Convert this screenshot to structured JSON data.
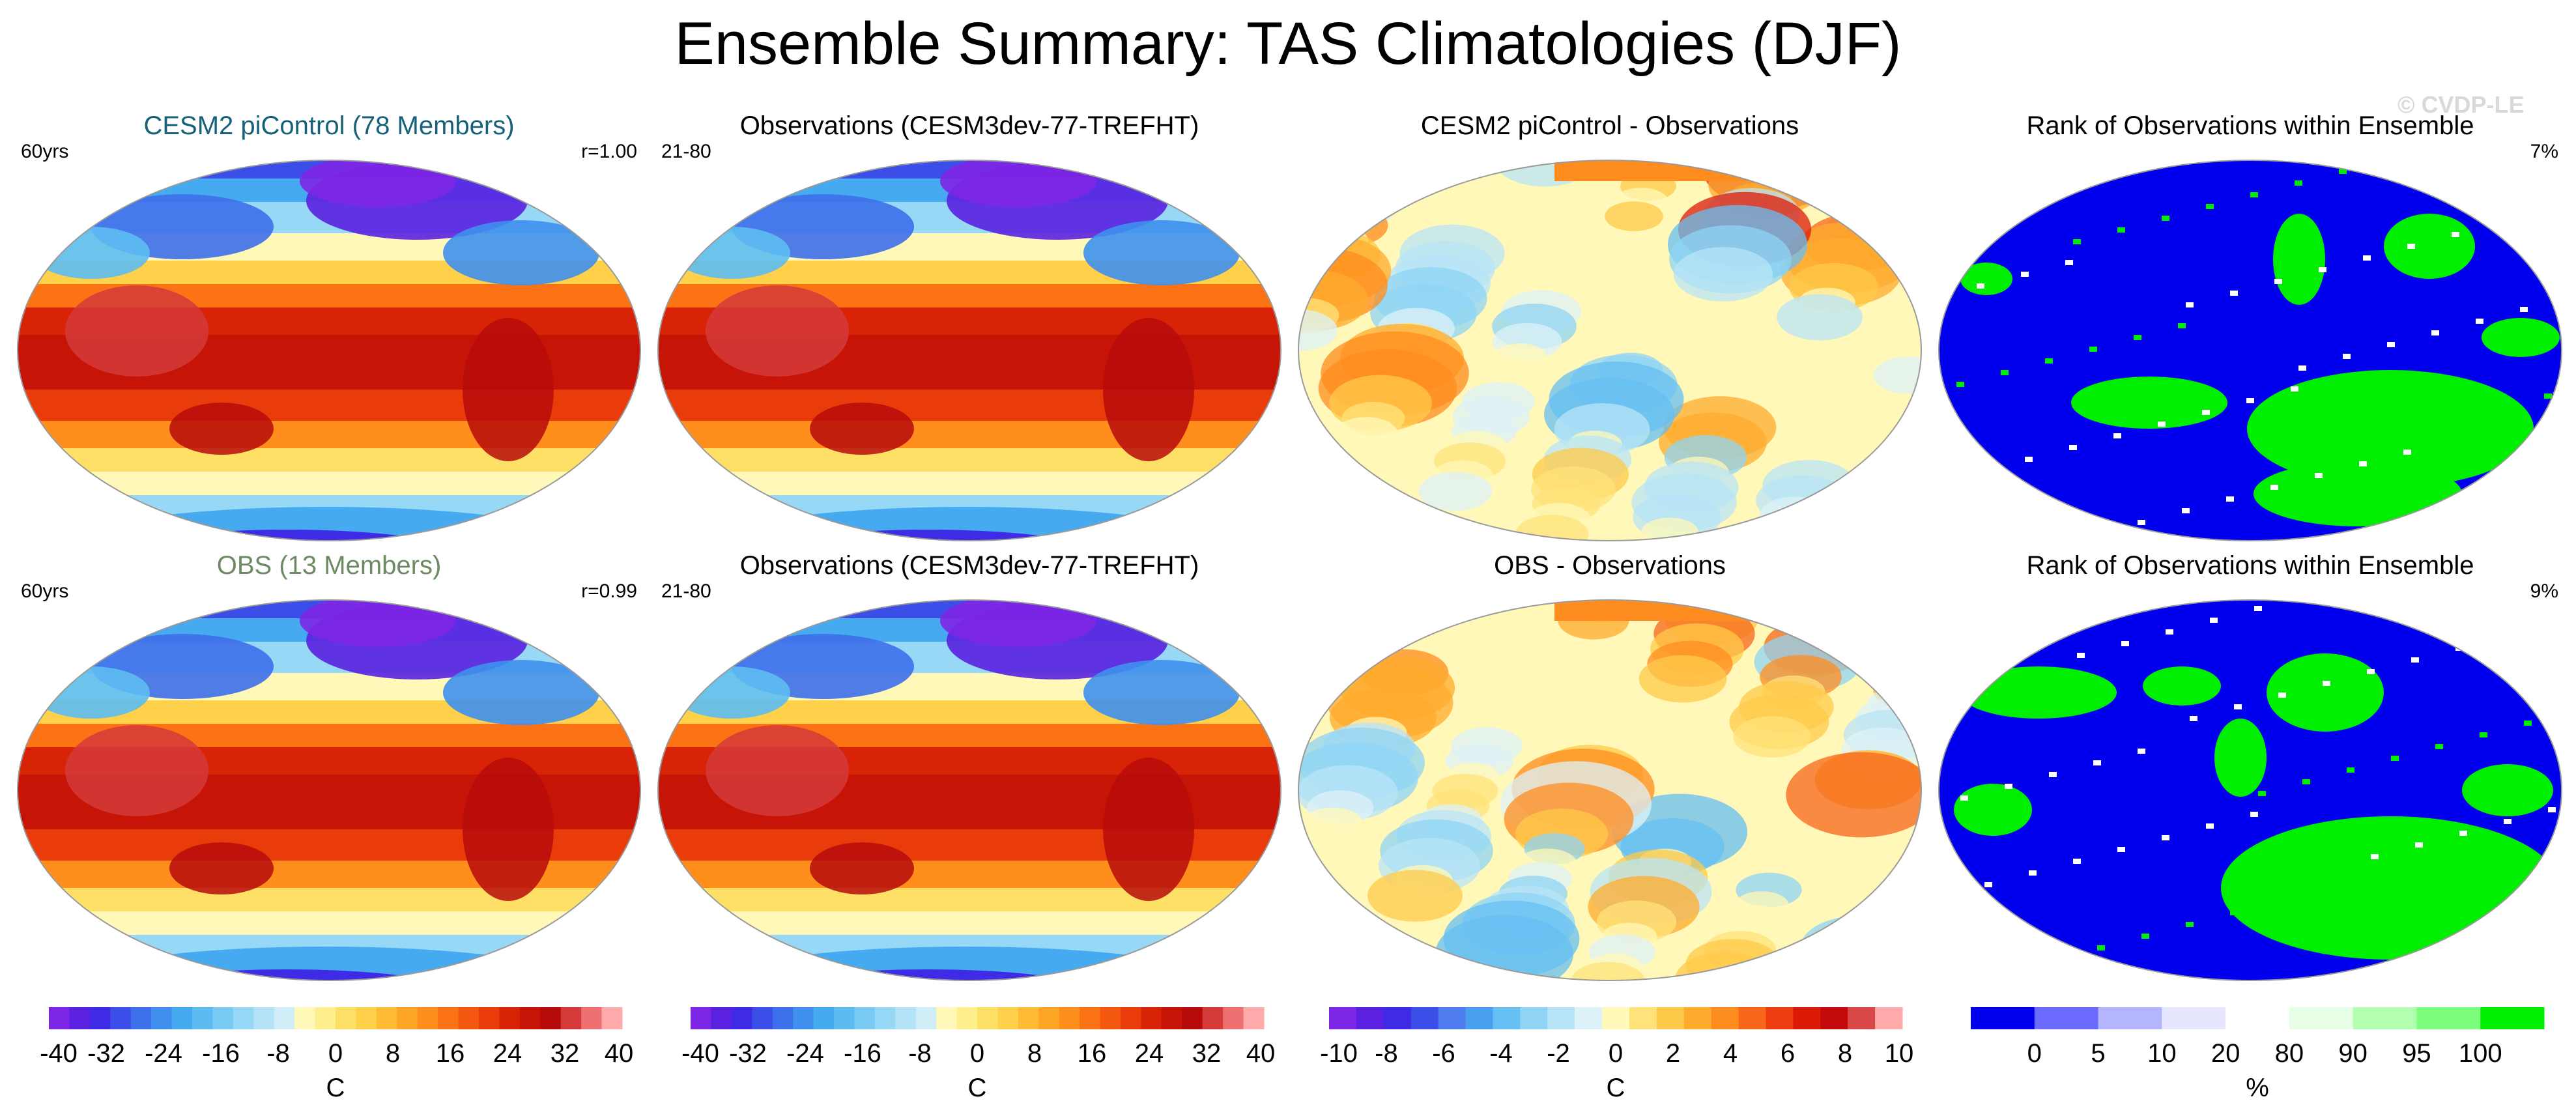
{
  "title": "Ensemble Summary: TAS Climatologies (DJF)",
  "watermark": "© CVDP-LE",
  "palettes": {
    "tas": [
      "#7e26e6",
      "#5a21e0",
      "#3f2be6",
      "#3c4ee8",
      "#3d6fea",
      "#3f90ee",
      "#45aaf0",
      "#5cbcf2",
      "#79cbf4",
      "#97d8f6",
      "#b4e3f7",
      "#cfecf7",
      "#fff8b8",
      "#ffee8c",
      "#ffe066",
      "#ffd04a",
      "#ffbb33",
      "#ffa526",
      "#ff8e1d",
      "#fb7315",
      "#f4570f",
      "#ea3c0a",
      "#d92307",
      "#c61406",
      "#b70b0b",
      "#d43a3a",
      "#ee7070",
      "#ffaaaa"
    ],
    "diff": [
      "#7e26e6",
      "#5a21e0",
      "#3f2be6",
      "#3c4ee8",
      "#4f7cef",
      "#4aa0f0",
      "#66bff3",
      "#8fd4f5",
      "#b8e4f7",
      "#ddf1f8",
      "#fff8b8",
      "#ffe37a",
      "#ffc94a",
      "#ffab2e",
      "#ff8c1f",
      "#f7661a",
      "#ee3d10",
      "#db1a08",
      "#c40a0a",
      "#d84848",
      "#ffaaaa"
    ],
    "rank": [
      "#0000ee",
      "#6a6aff",
      "#b5b5ff",
      "#e6e6ff",
      "#ffffff",
      "#e6ffe6",
      "#b2ffb2",
      "#7dff7d",
      "#00ee00"
    ]
  },
  "panels": [
    {
      "title": "CESM2 piControl (78 Members)",
      "title_color": "#17627a",
      "left": "60yrs",
      "right": "r=1.00",
      "kind": "tas"
    },
    {
      "title": "Observations (CESM3dev-77-TREFHT)",
      "title_color": "#000000",
      "left": "21-80",
      "right": "",
      "kind": "tas"
    },
    {
      "title": "CESM2 piControl - Observations",
      "title_color": "#000000",
      "left": "",
      "right": "",
      "kind": "diff"
    },
    {
      "title": "Rank of Observations within Ensemble",
      "title_color": "#000000",
      "left": "",
      "right": "7%",
      "kind": "rank"
    },
    {
      "title": "OBS (13 Members)",
      "title_color": "#6e8a64",
      "left": "60yrs",
      "right": "r=0.99",
      "kind": "tas"
    },
    {
      "title": "Observations (CESM3dev-77-TREFHT)",
      "title_color": "#000000",
      "left": "21-80",
      "right": "",
      "kind": "tas"
    },
    {
      "title": "OBS - Observations",
      "title_color": "#000000",
      "left": "",
      "right": "",
      "kind": "diff"
    },
    {
      "title": "Rank of Observations within Ensemble",
      "title_color": "#000000",
      "left": "",
      "right": "9%",
      "kind": "rank"
    }
  ],
  "colorbars": [
    {
      "unit": "C",
      "labels": [
        "-40",
        "-32",
        "-24",
        "-16",
        "-8",
        "0",
        "8",
        "16",
        "24",
        "32",
        "40"
      ],
      "palette": "tas"
    },
    {
      "unit": "C",
      "labels": [
        "-40",
        "-32",
        "-24",
        "-16",
        "-8",
        "0",
        "8",
        "16",
        "24",
        "32",
        "40"
      ],
      "palette": "tas"
    },
    {
      "unit": "C",
      "labels": [
        "-10",
        "-8",
        "-6",
        "-4",
        "-2",
        "0",
        "2",
        "4",
        "6",
        "8",
        "10"
      ],
      "palette": "diff"
    },
    {
      "unit": "%",
      "labels": [
        "0",
        "5",
        "10",
        "20",
        "80",
        "90",
        "95",
        "100"
      ],
      "palette": "rank"
    }
  ],
  "chart_data": {
    "type": "heatmap",
    "title": "Ensemble Summary: TAS Climatologies (DJF)",
    "projection": "global map (Robinson-like), Pacific centred",
    "panels": [
      {
        "title": "CESM2 piControl (78 Members)",
        "period": "60yrs",
        "pattern_correlation": 1.0,
        "variable": "TAS (DJF)",
        "units": "C",
        "colorbar_range": [
          -40,
          40
        ]
      },
      {
        "title": "Observations (CESM3dev-77-TREFHT)",
        "period": "21-80",
        "variable": "TAS (DJF)",
        "units": "C",
        "colorbar_range": [
          -40,
          40
        ]
      },
      {
        "title": "CESM2 piControl - Observations",
        "variable": "TAS difference",
        "units": "C",
        "colorbar_range": [
          -10,
          10
        ]
      },
      {
        "title": "Rank of Observations within Ensemble",
        "area_fraction": "7%",
        "units": "%",
        "levels": [
          0,
          5,
          10,
          20,
          80,
          90,
          95,
          100
        ]
      },
      {
        "title": "OBS (13 Members)",
        "period": "60yrs",
        "pattern_correlation": 0.99,
        "variable": "TAS (DJF)",
        "units": "C",
        "colorbar_range": [
          -40,
          40
        ]
      },
      {
        "title": "Observations (CESM3dev-77-TREFHT)",
        "period": "21-80",
        "variable": "TAS (DJF)",
        "units": "C",
        "colorbar_range": [
          -40,
          40
        ]
      },
      {
        "title": "OBS - Observations",
        "variable": "TAS difference",
        "units": "C",
        "colorbar_range": [
          -10,
          10
        ]
      },
      {
        "title": "Rank of Observations within Ensemble",
        "area_fraction": "9%",
        "units": "%",
        "levels": [
          0,
          5,
          10,
          20,
          80,
          90,
          95,
          100
        ]
      }
    ],
    "colorbar_ticks": {
      "tas": [
        -40,
        -32,
        -24,
        -16,
        -8,
        0,
        8,
        16,
        24,
        32,
        40
      ],
      "diff": [
        -10,
        -8,
        -6,
        -4,
        -2,
        0,
        2,
        4,
        6,
        8,
        10
      ],
      "rank": [
        0,
        5,
        10,
        20,
        80,
        90,
        95,
        100
      ]
    }
  }
}
